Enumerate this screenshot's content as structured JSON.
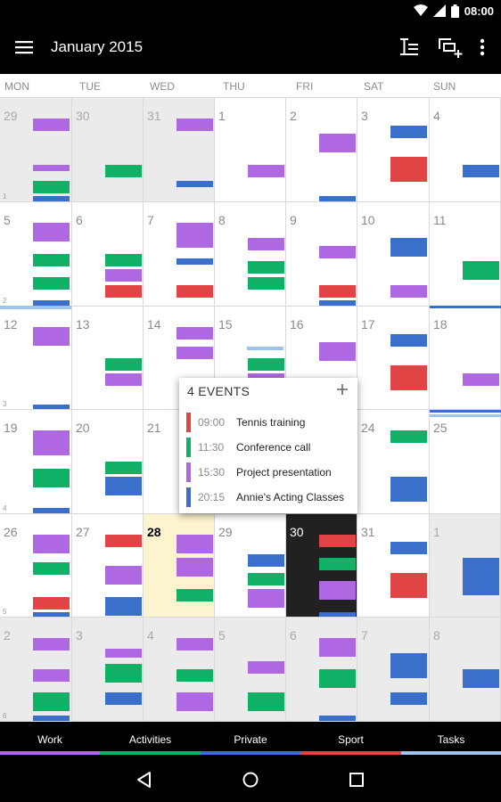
{
  "status": {
    "time": "08:00"
  },
  "header": {
    "title": "January 2015"
  },
  "colors": {
    "purple": "#b068e2",
    "green": "#10b067",
    "red": "#e04444",
    "blue": "#3a6fcc",
    "lightblue": "#9cc4ec"
  },
  "weekdays": [
    "MON",
    "TUE",
    "WED",
    "THU",
    "FRI",
    "SAT",
    "SUN"
  ],
  "weeks": [
    {
      "week": "1",
      "days": [
        {
          "day": "29",
          "kind": "other",
          "events": [
            {
              "row": 1,
              "color": "purple"
            },
            {
              "row": 4,
              "color": "purple",
              "h": 0.5
            },
            {
              "row": 5,
              "color": "green"
            },
            {
              "row": 6,
              "color": "blue"
            }
          ]
        },
        {
          "day": "30",
          "kind": "other",
          "events": [
            {
              "row": 4,
              "color": "green"
            }
          ]
        },
        {
          "day": "31",
          "kind": "other",
          "events": [
            {
              "row": 1,
              "color": "purple"
            },
            {
              "row": 5,
              "color": "blue",
              "h": 0.5
            }
          ]
        },
        {
          "day": "1",
          "kind": "normal",
          "events": [
            {
              "row": 4,
              "color": "purple"
            }
          ]
        },
        {
          "day": "2",
          "kind": "normal",
          "events": [
            {
              "row": 2,
              "color": "purple",
              "h": 1.5
            },
            {
              "row": 6,
              "color": "blue"
            }
          ]
        },
        {
          "day": "3",
          "kind": "normal",
          "events": [
            {
              "row": 1.5,
              "color": "blue"
            },
            {
              "row": 3.5,
              "color": "red",
              "h": 2
            }
          ]
        },
        {
          "day": "4",
          "kind": "normal",
          "events": [
            {
              "row": 4,
              "color": "blue"
            }
          ]
        }
      ]
    },
    {
      "week": "2",
      "days": [
        {
          "day": "5",
          "kind": "normal",
          "events": [
            {
              "row": 1,
              "color": "purple",
              "h": 1.5
            },
            {
              "row": 3,
              "color": "green"
            },
            {
              "row": 4.5,
              "color": "green"
            },
            {
              "row": 6,
              "color": "blue"
            }
          ]
        },
        {
          "day": "6",
          "kind": "normal",
          "events": [
            {
              "row": 3,
              "color": "green"
            },
            {
              "row": 4,
              "color": "purple"
            },
            {
              "row": 5,
              "color": "red"
            }
          ]
        },
        {
          "day": "7",
          "kind": "normal",
          "events": [
            {
              "row": 1,
              "color": "purple",
              "h": 2
            },
            {
              "row": 3.3,
              "color": "blue",
              "h": 0.5
            },
            {
              "row": 5,
              "color": "red"
            }
          ]
        },
        {
          "day": "8",
          "kind": "normal",
          "events": [
            {
              "row": 2,
              "color": "purple"
            },
            {
              "row": 3.5,
              "color": "green"
            },
            {
              "row": 4.5,
              "color": "green"
            }
          ]
        },
        {
          "day": "9",
          "kind": "normal",
          "events": [
            {
              "row": 2.5,
              "color": "purple"
            },
            {
              "row": 5,
              "color": "red"
            },
            {
              "row": 6,
              "color": "blue"
            }
          ]
        },
        {
          "day": "10",
          "kind": "normal",
          "events": [
            {
              "row": 2,
              "color": "blue",
              "h": 1.5
            },
            {
              "row": 5,
              "color": "purple"
            }
          ]
        },
        {
          "day": "11",
          "kind": "normal",
          "events": [
            {
              "row": 3.5,
              "color": "green",
              "h": 1.5
            }
          ]
        }
      ]
    },
    {
      "week": "3",
      "days": [
        {
          "day": "12",
          "kind": "normal",
          "events": [
            {
              "row": 1,
              "color": "purple",
              "h": 1.5
            },
            {
              "row": 6,
              "color": "blue"
            }
          ]
        },
        {
          "day": "13",
          "kind": "normal",
          "events": [
            {
              "row": 3,
              "color": "green"
            },
            {
              "row": 4,
              "color": "purple"
            }
          ]
        },
        {
          "day": "14",
          "kind": "normal",
          "events": [
            {
              "row": 1,
              "color": "purple"
            },
            {
              "row": 2.3,
              "color": "purple"
            }
          ]
        },
        {
          "day": "15",
          "kind": "normal",
          "events": [
            {
              "row": 3,
              "color": "green"
            },
            {
              "row": 4,
              "color": "purple"
            }
          ]
        },
        {
          "day": "16",
          "kind": "normal",
          "events": [
            {
              "row": 2,
              "color": "purple",
              "h": 1.5
            }
          ]
        },
        {
          "day": "17",
          "kind": "normal",
          "events": [
            {
              "row": 1.5,
              "color": "blue"
            },
            {
              "row": 3.5,
              "color": "red",
              "h": 2
            }
          ]
        },
        {
          "day": "18",
          "kind": "normal",
          "events": [
            {
              "row": 4,
              "color": "purple"
            }
          ]
        }
      ]
    },
    {
      "week": "4",
      "days": [
        {
          "day": "19",
          "kind": "normal",
          "events": [
            {
              "row": 1,
              "color": "purple",
              "h": 2
            },
            {
              "row": 3.5,
              "color": "green",
              "h": 1.5
            },
            {
              "row": 6,
              "color": "blue"
            }
          ]
        },
        {
          "day": "20",
          "kind": "normal",
          "events": [
            {
              "row": 3,
              "color": "green"
            },
            {
              "row": 4,
              "color": "blue",
              "h": 1.5
            }
          ]
        },
        {
          "day": "21",
          "kind": "normal",
          "events": []
        },
        {
          "day": "22",
          "kind": "normal",
          "events": []
        },
        {
          "day": "23",
          "kind": "normal",
          "events": []
        },
        {
          "day": "24",
          "kind": "normal",
          "events": [
            {
              "row": 1,
              "color": "green"
            },
            {
              "row": 4,
              "color": "blue",
              "h": 2
            }
          ]
        },
        {
          "day": "25",
          "kind": "normal",
          "events": []
        }
      ]
    },
    {
      "week": "5",
      "days": [
        {
          "day": "26",
          "kind": "normal",
          "events": [
            {
              "row": 1,
              "color": "purple",
              "h": 1.5
            },
            {
              "row": 2.8,
              "color": "green"
            },
            {
              "row": 5,
              "color": "red"
            },
            {
              "row": 6,
              "color": "blue"
            }
          ]
        },
        {
          "day": "27",
          "kind": "normal",
          "events": [
            {
              "row": 1,
              "color": "red"
            },
            {
              "row": 3,
              "color": "purple",
              "h": 1.5
            },
            {
              "row": 5,
              "color": "blue",
              "h": 1.5
            }
          ]
        },
        {
          "day": "28",
          "kind": "today",
          "events": [
            {
              "row": 1,
              "color": "purple",
              "h": 1.5
            },
            {
              "row": 2.5,
              "color": "purple",
              "h": 1.5
            },
            {
              "row": 4.5,
              "color": "green"
            }
          ]
        },
        {
          "day": "29",
          "kind": "normal",
          "events": [
            {
              "row": 2.3,
              "color": "blue"
            },
            {
              "row": 3.5,
              "color": "green"
            },
            {
              "row": 4.5,
              "color": "purple",
              "h": 1.5
            }
          ]
        },
        {
          "day": "30",
          "kind": "selected",
          "events": [
            {
              "row": 1,
              "color": "red"
            },
            {
              "row": 2.5,
              "color": "green"
            },
            {
              "row": 4,
              "color": "purple",
              "h": 1.5
            },
            {
              "row": 6,
              "color": "blue"
            }
          ]
        },
        {
          "day": "31",
          "kind": "normal",
          "events": [
            {
              "row": 1.5,
              "color": "blue"
            },
            {
              "row": 3.5,
              "color": "red",
              "h": 2
            }
          ]
        },
        {
          "day": "1",
          "kind": "other",
          "events": [
            {
              "row": 2.5,
              "color": "blue",
              "h": 3
            }
          ]
        }
      ]
    },
    {
      "week": "6",
      "days": [
        {
          "day": "2",
          "kind": "other",
          "events": [
            {
              "row": 1,
              "color": "purple"
            },
            {
              "row": 3,
              "color": "purple"
            },
            {
              "row": 4.5,
              "color": "green",
              "h": 1.5
            },
            {
              "row": 6,
              "color": "blue"
            }
          ]
        },
        {
          "day": "3",
          "kind": "other",
          "events": [
            {
              "row": 1.7,
              "color": "purple",
              "h": 0.7
            },
            {
              "row": 2.7,
              "color": "green",
              "h": 1.5
            },
            {
              "row": 4.5,
              "color": "blue"
            }
          ]
        },
        {
          "day": "4",
          "kind": "other",
          "events": [
            {
              "row": 1,
              "color": "purple"
            },
            {
              "row": 3,
              "color": "green"
            },
            {
              "row": 4.5,
              "color": "purple",
              "h": 1.5
            }
          ]
        },
        {
          "day": "5",
          "kind": "other",
          "events": [
            {
              "row": 2.5,
              "color": "purple"
            },
            {
              "row": 4.5,
              "color": "green",
              "h": 1.5
            }
          ]
        },
        {
          "day": "6",
          "kind": "other",
          "events": [
            {
              "row": 1,
              "color": "purple",
              "h": 1.5
            },
            {
              "row": 3,
              "color": "green",
              "h": 1.5
            },
            {
              "row": 6,
              "color": "blue"
            }
          ]
        },
        {
          "day": "7",
          "kind": "other",
          "events": [
            {
              "row": 2,
              "color": "blue",
              "h": 2
            },
            {
              "row": 4.5,
              "color": "blue"
            }
          ]
        },
        {
          "day": "8",
          "kind": "other",
          "events": [
            {
              "row": 3,
              "color": "blue",
              "h": 1.5
            }
          ]
        }
      ]
    }
  ],
  "popup": {
    "title": "4 EVENTS",
    "add_icon": "plus-icon",
    "events": [
      {
        "time": "09:00",
        "label": "Tennis training",
        "color": "red"
      },
      {
        "time": "11:30",
        "label": "Conference call",
        "color": "green"
      },
      {
        "time": "15:30",
        "label": "Project presentation",
        "color": "purple"
      },
      {
        "time": "20:15",
        "label": "Annie's Acting Classes",
        "color": "blue"
      }
    ]
  },
  "categories": [
    {
      "label": "Work",
      "color": "#b068e2"
    },
    {
      "label": "Activities",
      "color": "#10b067"
    },
    {
      "label": "Private",
      "color": "#3a6fcc"
    },
    {
      "label": "Sport",
      "color": "#e04444"
    },
    {
      "label": "Tasks",
      "color": "#9cc4ec"
    }
  ],
  "icons": {
    "menu": "menu-icon",
    "view": "view-mode-icon",
    "add_event": "add-event-icon",
    "overflow": "more-vert-icon",
    "back": "back-icon",
    "home": "home-icon",
    "recents": "recents-icon"
  }
}
